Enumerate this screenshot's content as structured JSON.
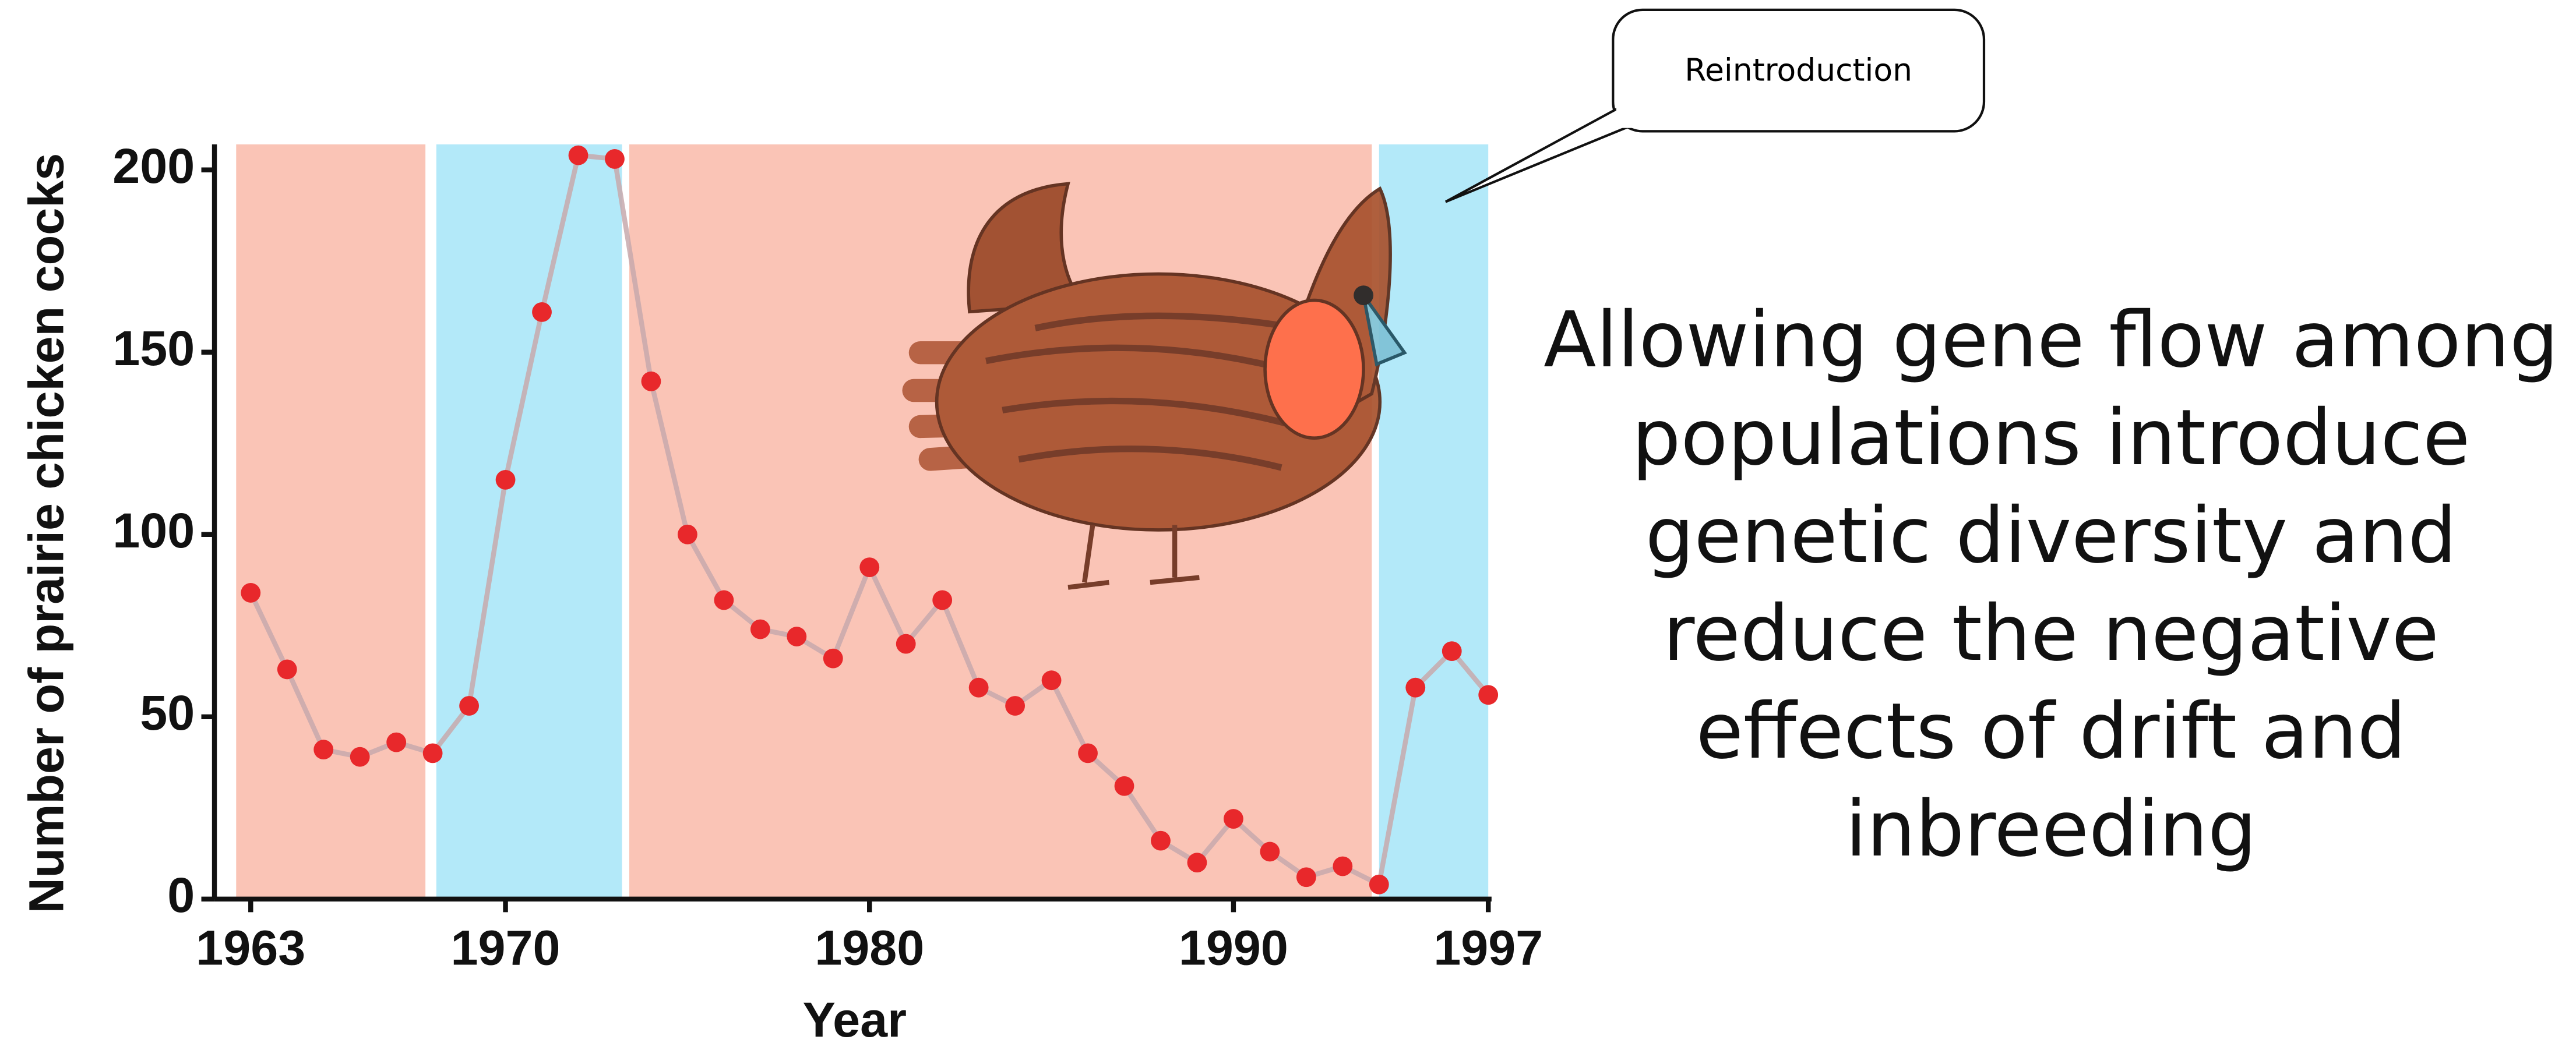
{
  "chart_data": {
    "type": "line",
    "x_label": "Year",
    "y_label": "Number of prairie chicken cocks",
    "x": [
      1963,
      1964,
      1965,
      1966,
      1967,
      1968,
      1969,
      1970,
      1971,
      1972,
      1973,
      1974,
      1975,
      1976,
      1977,
      1978,
      1979,
      1980,
      1981,
      1982,
      1983,
      1984,
      1985,
      1986,
      1987,
      1988,
      1989,
      1990,
      1991,
      1992,
      1993,
      1994,
      1995,
      1996,
      1997
    ],
    "series": [
      {
        "color": "#e8282b",
        "line_color": "#c7a9ad",
        "values": [
          84,
          63,
          41,
          39,
          43,
          40,
          53,
          115,
          161,
          204,
          203,
          142,
          100,
          82,
          74,
          72,
          66,
          91,
          70,
          82,
          58,
          53,
          60,
          40,
          31,
          16,
          10,
          22,
          13,
          6,
          9,
          4,
          58,
          68,
          56
        ]
      }
    ],
    "xlim": [
      1962.5,
      1997
    ],
    "ylim": [
      0,
      207
    ],
    "xticks": [
      1963,
      1970,
      1980,
      1990,
      1997
    ],
    "yticks": [
      0,
      50,
      100,
      150,
      200
    ],
    "shaded_periods": [
      {
        "start": 1962.6,
        "end": 1967.8,
        "color": "#fac4b6"
      },
      {
        "start": 1968.1,
        "end": 1973.2,
        "color": "#b3e9f9"
      },
      {
        "start": 1973.4,
        "end": 1993.8,
        "color": "#fac4b6"
      },
      {
        "start": 1994.0,
        "end": 1997.0,
        "color": "#b3e9f9"
      }
    ],
    "callout": "Reintroduction",
    "side_text": "Allowing gene flow among populations introduce genetic diversity and reduce the negative effects of drift and inbreeding"
  }
}
